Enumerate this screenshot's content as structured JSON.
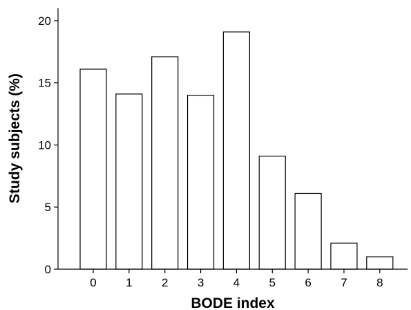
{
  "chart_data": {
    "type": "bar",
    "title": "",
    "xlabel": "BODE index",
    "ylabel": "Study subjects (%)",
    "categories": [
      "0",
      "1",
      "2",
      "3",
      "4",
      "5",
      "6",
      "7",
      "8"
    ],
    "values": [
      16.1,
      14.1,
      17.1,
      14.0,
      19.1,
      9.1,
      6.1,
      2.1,
      1.0
    ],
    "ylim": [
      0,
      21
    ],
    "yticks": [
      "0",
      "5",
      "10",
      "15",
      "20"
    ],
    "grid": false,
    "legend": "none",
    "bar_color": "#ffffff",
    "edge_color": "#000000"
  }
}
